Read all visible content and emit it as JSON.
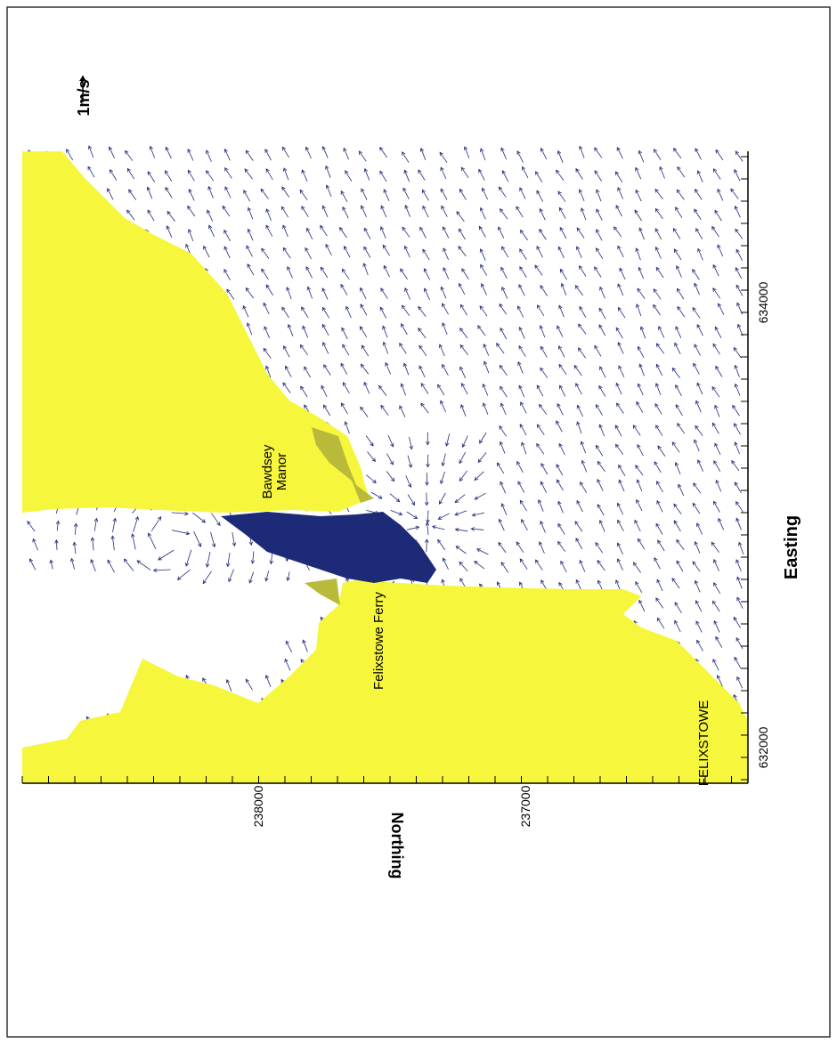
{
  "map": {
    "xlabel": "Easting",
    "ylabel": "Northing",
    "x_ticks": [
      "632000",
      "634000"
    ],
    "y_ticks": [
      "238000",
      "237000"
    ],
    "scale_label": "1m/s",
    "places": {
      "bawdsey": "Bawdsey\nManor",
      "ferry": "Felixstowe Ferry",
      "town": "FELIXSTOWE"
    },
    "colors": {
      "land": "#f6f63c",
      "shallow": "#b9b93a",
      "vector": "#1f2a7a",
      "channel": "#1c2a78"
    }
  }
}
